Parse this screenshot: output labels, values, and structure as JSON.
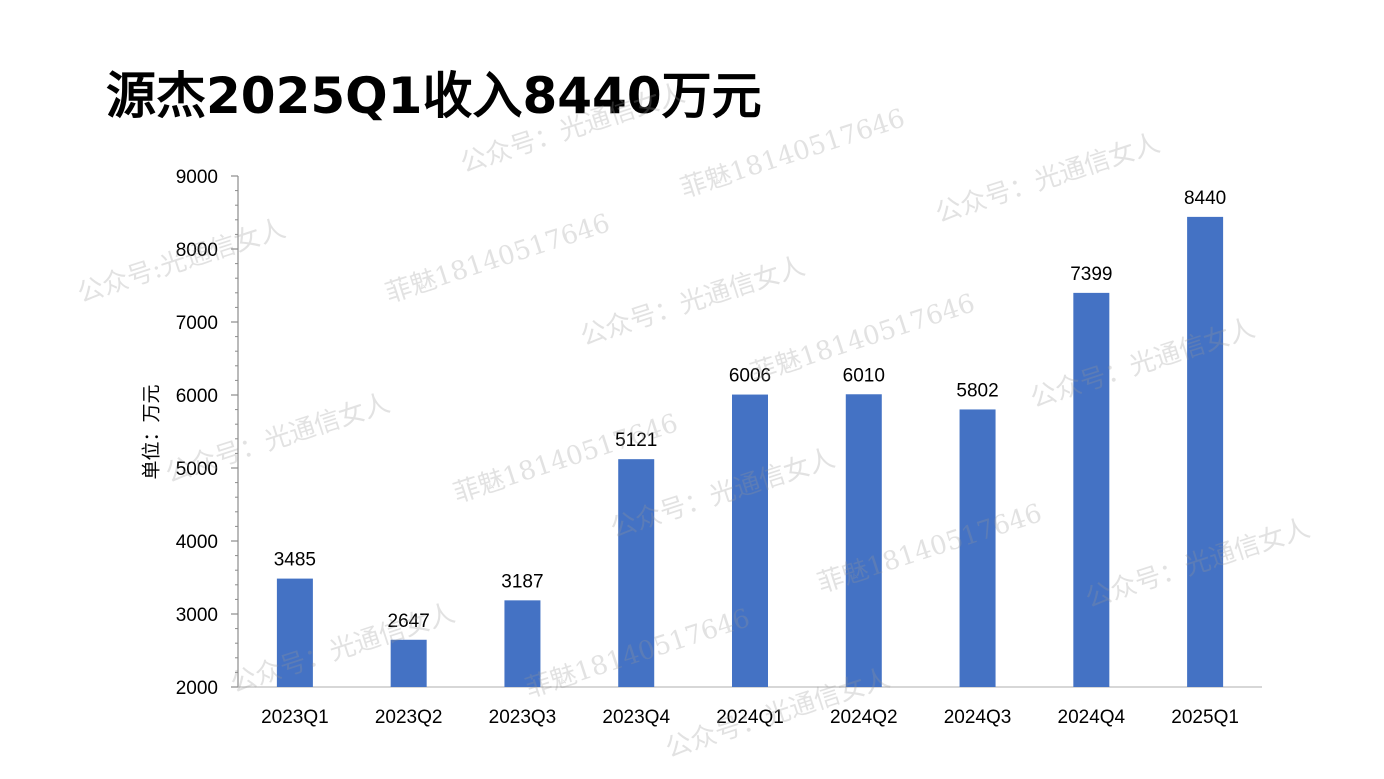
{
  "chart_data": {
    "type": "bar",
    "title": "源杰2025Q1收入8440万元",
    "ylabel": "单位：万元",
    "xlabel": "",
    "categories": [
      "2023Q1",
      "2023Q2",
      "2023Q3",
      "2023Q4",
      "2024Q1",
      "2024Q2",
      "2024Q3",
      "2024Q4",
      "2025Q1"
    ],
    "values": [
      3485,
      2647,
      3187,
      5121,
      6006,
      6010,
      5802,
      7399,
      8440
    ],
    "ylim": [
      2000,
      9000
    ],
    "yticks": [
      2000,
      3000,
      4000,
      5000,
      6000,
      7000,
      8000,
      9000
    ],
    "bar_color": "#4472C4",
    "grid": false,
    "legend": "none"
  },
  "watermarks": {
    "account": "公众号：光通信女人",
    "account_short": "公众号:光通信女人",
    "phone": "菲魅18140517646"
  }
}
